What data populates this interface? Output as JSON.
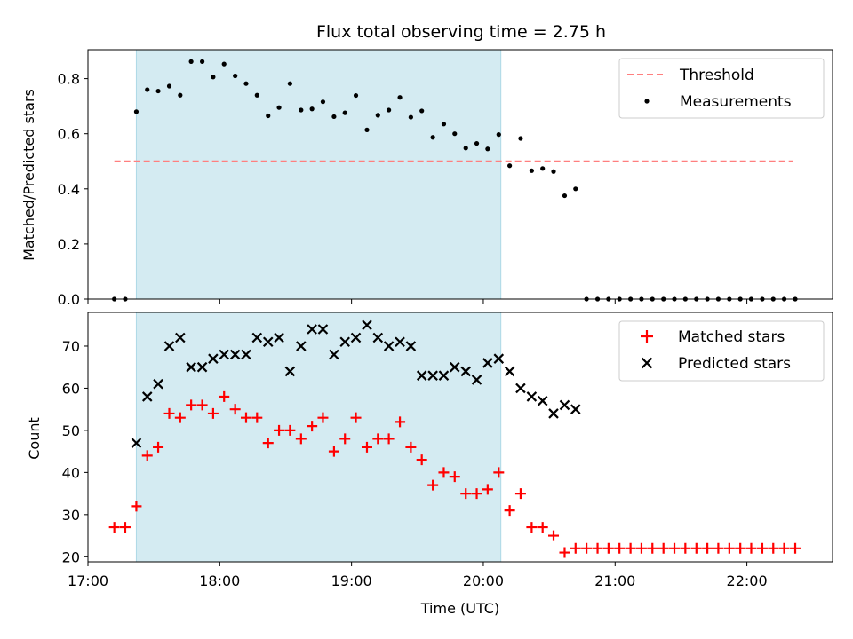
{
  "chart_data": [
    {
      "type": "scatter",
      "title": "Flux total observing time = 2.75 h",
      "xlabel": "",
      "ylabel": "Matched/Predicted stars",
      "xlim": [
        17.0,
        22.65
      ],
      "ylim": [
        0,
        0.905
      ],
      "yticks": [
        0.0,
        0.2,
        0.4,
        0.6,
        0.8
      ],
      "ytick_labels": [
        "0.0",
        "0.2",
        "0.4",
        "0.6",
        "0.8"
      ],
      "xticks": [
        17,
        18,
        19,
        20,
        21,
        22
      ],
      "grid": false,
      "legend": "top-right",
      "shaded_region": {
        "x": [
          17.367,
          20.133
        ],
        "color": "#add8e6"
      },
      "threshold": {
        "name": "Threshold",
        "y": 0.5,
        "x": [
          17.2,
          22.35
        ],
        "color": "#ff7f7f"
      },
      "series": [
        {
          "name": "Measurements",
          "marker": "dot",
          "color": "#000000",
          "points": [
            [
              17.2,
              0.0
            ],
            [
              17.283,
              0.0
            ],
            [
              17.367,
              0.68
            ],
            [
              17.45,
              0.76
            ],
            [
              17.533,
              0.755
            ],
            [
              17.617,
              0.773
            ],
            [
              17.7,
              0.74
            ],
            [
              17.783,
              0.862
            ],
            [
              17.867,
              0.862
            ],
            [
              17.95,
              0.806
            ],
            [
              18.033,
              0.853
            ],
            [
              18.117,
              0.81
            ],
            [
              18.2,
              0.782
            ],
            [
              18.283,
              0.74
            ],
            [
              18.367,
              0.665
            ],
            [
              18.45,
              0.695
            ],
            [
              18.533,
              0.782
            ],
            [
              18.617,
              0.686
            ],
            [
              18.7,
              0.69
            ],
            [
              18.783,
              0.716
            ],
            [
              18.867,
              0.662
            ],
            [
              18.95,
              0.676
            ],
            [
              19.033,
              0.739
            ],
            [
              19.117,
              0.614
            ],
            [
              19.2,
              0.667
            ],
            [
              19.283,
              0.686
            ],
            [
              19.367,
              0.732
            ],
            [
              19.45,
              0.66
            ],
            [
              19.533,
              0.683
            ],
            [
              19.617,
              0.587
            ],
            [
              19.7,
              0.635
            ],
            [
              19.783,
              0.6
            ],
            [
              19.867,
              0.548
            ],
            [
              19.95,
              0.565
            ],
            [
              20.033,
              0.545
            ],
            [
              20.117,
              0.597
            ],
            [
              20.2,
              0.484
            ],
            [
              20.283,
              0.583
            ],
            [
              20.367,
              0.466
            ],
            [
              20.45,
              0.474
            ],
            [
              20.533,
              0.463
            ],
            [
              20.617,
              0.375
            ],
            [
              20.7,
              0.4
            ],
            [
              20.783,
              0.0
            ],
            [
              20.867,
              0.0
            ],
            [
              20.95,
              0.0
            ],
            [
              21.033,
              0.0
            ],
            [
              21.117,
              0.0
            ],
            [
              21.2,
              0.0
            ],
            [
              21.283,
              0.0
            ],
            [
              21.367,
              0.0
            ],
            [
              21.45,
              0.0
            ],
            [
              21.533,
              0.0
            ],
            [
              21.617,
              0.0
            ],
            [
              21.7,
              0.0
            ],
            [
              21.783,
              0.0
            ],
            [
              21.867,
              0.0
            ],
            [
              21.95,
              0.0
            ],
            [
              22.033,
              0.0
            ],
            [
              22.117,
              0.0
            ],
            [
              22.2,
              0.0
            ],
            [
              22.283,
              0.0
            ],
            [
              22.367,
              0.0
            ]
          ]
        }
      ]
    },
    {
      "type": "scatter",
      "title": "",
      "xlabel": "Time (UTC)",
      "ylabel": "Count",
      "xlim": [
        17.0,
        22.65
      ],
      "ylim": [
        18.8,
        78.0
      ],
      "yticks": [
        20,
        30,
        40,
        50,
        60,
        70
      ],
      "ytick_labels": [
        "20",
        "30",
        "40",
        "50",
        "60",
        "70"
      ],
      "xticks": [
        17,
        18,
        19,
        20,
        21,
        22
      ],
      "xtick_labels": [
        "17:00",
        "18:00",
        "19:00",
        "20:00",
        "21:00",
        "22:00"
      ],
      "grid": false,
      "legend": "top-right",
      "shaded_region": {
        "x": [
          17.367,
          20.133
        ],
        "color": "#add8e6"
      },
      "series": [
        {
          "name": "Matched stars",
          "marker": "plus",
          "color": "#ff0000",
          "points": [
            [
              17.2,
              27
            ],
            [
              17.283,
              27
            ],
            [
              17.367,
              32
            ],
            [
              17.45,
              44
            ],
            [
              17.533,
              46
            ],
            [
              17.617,
              54
            ],
            [
              17.7,
              53
            ],
            [
              17.783,
              56
            ],
            [
              17.867,
              56
            ],
            [
              17.95,
              54
            ],
            [
              18.033,
              58
            ],
            [
              18.117,
              55
            ],
            [
              18.2,
              53
            ],
            [
              18.283,
              53
            ],
            [
              18.367,
              47
            ],
            [
              18.45,
              50
            ],
            [
              18.533,
              50
            ],
            [
              18.617,
              48
            ],
            [
              18.7,
              51
            ],
            [
              18.783,
              53
            ],
            [
              18.867,
              45
            ],
            [
              18.95,
              48
            ],
            [
              19.033,
              53
            ],
            [
              19.117,
              46
            ],
            [
              19.2,
              48
            ],
            [
              19.283,
              48
            ],
            [
              19.367,
              52
            ],
            [
              19.45,
              46
            ],
            [
              19.533,
              43
            ],
            [
              19.617,
              37
            ],
            [
              19.7,
              40
            ],
            [
              19.783,
              39
            ],
            [
              19.867,
              35
            ],
            [
              19.95,
              35
            ],
            [
              20.033,
              36
            ],
            [
              20.117,
              40
            ],
            [
              20.2,
              31
            ],
            [
              20.283,
              35
            ],
            [
              20.367,
              27
            ],
            [
              20.45,
              27
            ],
            [
              20.533,
              25
            ],
            [
              20.617,
              21
            ],
            [
              20.7,
              22
            ],
            [
              20.783,
              22
            ],
            [
              20.867,
              22
            ],
            [
              20.95,
              22
            ],
            [
              21.033,
              22
            ],
            [
              21.117,
              22
            ],
            [
              21.2,
              22
            ],
            [
              21.283,
              22
            ],
            [
              21.367,
              22
            ],
            [
              21.45,
              22
            ],
            [
              21.533,
              22
            ],
            [
              21.617,
              22
            ],
            [
              21.7,
              22
            ],
            [
              21.783,
              22
            ],
            [
              21.867,
              22
            ],
            [
              21.95,
              22
            ],
            [
              22.033,
              22
            ],
            [
              22.117,
              22
            ],
            [
              22.2,
              22
            ],
            [
              22.283,
              22
            ],
            [
              22.367,
              22
            ]
          ]
        },
        {
          "name": "Predicted stars",
          "marker": "x",
          "color": "#000000",
          "points": [
            [
              17.367,
              47
            ],
            [
              17.45,
              58
            ],
            [
              17.533,
              61
            ],
            [
              17.617,
              70
            ],
            [
              17.7,
              72
            ],
            [
              17.783,
              65
            ],
            [
              17.867,
              65
            ],
            [
              17.95,
              67
            ],
            [
              18.033,
              68
            ],
            [
              18.117,
              68
            ],
            [
              18.2,
              68
            ],
            [
              18.283,
              72
            ],
            [
              18.367,
              71
            ],
            [
              18.45,
              72
            ],
            [
              18.533,
              64
            ],
            [
              18.617,
              70
            ],
            [
              18.7,
              74
            ],
            [
              18.783,
              74
            ],
            [
              18.867,
              68
            ],
            [
              18.95,
              71
            ],
            [
              19.033,
              72
            ],
            [
              19.117,
              75
            ],
            [
              19.2,
              72
            ],
            [
              19.283,
              70
            ],
            [
              19.367,
              71
            ],
            [
              19.45,
              70
            ],
            [
              19.533,
              63
            ],
            [
              19.617,
              63
            ],
            [
              19.7,
              63
            ],
            [
              19.783,
              65
            ],
            [
              19.867,
              64
            ],
            [
              19.95,
              62
            ],
            [
              20.033,
              66
            ],
            [
              20.117,
              67
            ],
            [
              20.2,
              64
            ],
            [
              20.283,
              60
            ],
            [
              20.367,
              58
            ],
            [
              20.45,
              57
            ],
            [
              20.533,
              54
            ],
            [
              20.617,
              56
            ],
            [
              20.7,
              55
            ]
          ]
        }
      ]
    }
  ]
}
